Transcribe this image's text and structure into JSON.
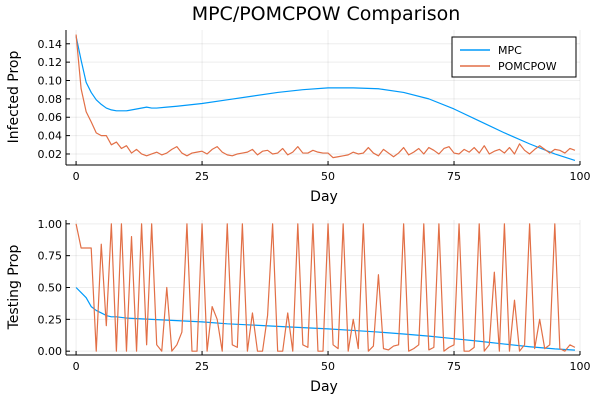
{
  "chart_data": [
    {
      "type": "line",
      "title": "MPC/POMCPOW Comparison",
      "xlabel": "Day",
      "ylabel": "Infected Prop",
      "xlim": [
        -2,
        100
      ],
      "ylim": [
        0.008,
        0.155
      ],
      "xticks": [
        0,
        25,
        50,
        75,
        100
      ],
      "xtick_labels": [
        "0",
        "25",
        "50",
        "75",
        "100"
      ],
      "yticks": [
        0.02,
        0.04,
        0.06,
        0.08,
        0.1,
        0.12,
        0.14
      ],
      "ytick_labels": [
        "0.02",
        "0.04",
        "0.06",
        "0.08",
        "0.10",
        "0.12",
        "0.14"
      ],
      "legend": "top-right",
      "series": [
        {
          "name": "MPC",
          "color": "#009AFA",
          "x": [
            0,
            1,
            2,
            3,
            4,
            5,
            6,
            7,
            8,
            10,
            12,
            14,
            15,
            16,
            18,
            20,
            25,
            30,
            35,
            40,
            45,
            50,
            55,
            60,
            65,
            70,
            75,
            80,
            85,
            90,
            95,
            99
          ],
          "y": [
            0.148,
            0.122,
            0.098,
            0.087,
            0.079,
            0.074,
            0.07,
            0.068,
            0.067,
            0.067,
            0.069,
            0.071,
            0.07,
            0.07,
            0.071,
            0.072,
            0.075,
            0.079,
            0.083,
            0.087,
            0.09,
            0.092,
            0.092,
            0.091,
            0.087,
            0.08,
            0.069,
            0.056,
            0.043,
            0.031,
            0.02,
            0.013
          ]
        },
        {
          "name": "POMCPOW",
          "color": "#E26F46",
          "x": [
            0,
            1,
            2,
            3,
            4,
            5,
            6,
            7,
            8,
            9,
            10,
            11,
            12,
            13,
            14,
            15,
            16,
            17,
            18,
            19,
            20,
            21,
            22,
            23,
            24,
            25,
            26,
            27,
            28,
            29,
            30,
            31,
            32,
            33,
            34,
            35,
            36,
            37,
            38,
            39,
            40,
            41,
            42,
            43,
            44,
            45,
            46,
            47,
            48,
            49,
            50,
            51,
            52,
            53,
            54,
            55,
            56,
            57,
            58,
            59,
            60,
            61,
            62,
            63,
            64,
            65,
            66,
            67,
            68,
            69,
            70,
            71,
            72,
            73,
            74,
            75,
            76,
            77,
            78,
            79,
            80,
            81,
            82,
            83,
            84,
            85,
            86,
            87,
            88,
            89,
            90,
            91,
            92,
            93,
            94,
            95,
            96,
            97,
            98,
            99
          ],
          "y": [
            0.15,
            0.091,
            0.066,
            0.055,
            0.043,
            0.04,
            0.04,
            0.03,
            0.033,
            0.026,
            0.029,
            0.021,
            0.025,
            0.02,
            0.018,
            0.02,
            0.022,
            0.019,
            0.021,
            0.025,
            0.028,
            0.021,
            0.018,
            0.021,
            0.022,
            0.023,
            0.02,
            0.025,
            0.028,
            0.022,
            0.019,
            0.018,
            0.02,
            0.021,
            0.022,
            0.025,
            0.019,
            0.023,
            0.024,
            0.02,
            0.021,
            0.026,
            0.019,
            0.022,
            0.028,
            0.021,
            0.021,
            0.024,
            0.022,
            0.021,
            0.021,
            0.016,
            0.017,
            0.018,
            0.019,
            0.022,
            0.02,
            0.021,
            0.027,
            0.021,
            0.018,
            0.025,
            0.021,
            0.017,
            0.021,
            0.027,
            0.019,
            0.022,
            0.026,
            0.02,
            0.027,
            0.024,
            0.02,
            0.026,
            0.028,
            0.021,
            0.02,
            0.025,
            0.022,
            0.027,
            0.021,
            0.029,
            0.02,
            0.023,
            0.025,
            0.021,
            0.027,
            0.02,
            0.031,
            0.024,
            0.02,
            0.025,
            0.029,
            0.025,
            0.021,
            0.025,
            0.024,
            0.021,
            0.026,
            0.024
          ]
        }
      ]
    },
    {
      "type": "line",
      "title": "",
      "xlabel": "Day",
      "ylabel": "Testing Prop",
      "xlim": [
        -2,
        100
      ],
      "ylim": [
        -0.03,
        1.03
      ],
      "xticks": [
        0,
        25,
        50,
        75,
        100
      ],
      "xtick_labels": [
        "0",
        "25",
        "50",
        "75",
        "100"
      ],
      "yticks": [
        0.0,
        0.25,
        0.5,
        0.75,
        1.0
      ],
      "ytick_labels": [
        "0.00",
        "0.25",
        "0.50",
        "0.75",
        "1.00"
      ],
      "series": [
        {
          "name": "MPC",
          "color": "#009AFA",
          "x": [
            0,
            1,
            2,
            3,
            4,
            5,
            6,
            7,
            8,
            10,
            15,
            20,
            25,
            30,
            35,
            40,
            45,
            50,
            55,
            60,
            65,
            70,
            75,
            80,
            85,
            90,
            95,
            99
          ],
          "y": [
            0.5,
            0.46,
            0.42,
            0.35,
            0.32,
            0.3,
            0.28,
            0.27,
            0.27,
            0.26,
            0.25,
            0.24,
            0.23,
            0.215,
            0.205,
            0.195,
            0.185,
            0.175,
            0.163,
            0.15,
            0.135,
            0.118,
            0.098,
            0.078,
            0.056,
            0.035,
            0.018,
            0.008
          ]
        },
        {
          "name": "POMCPOW",
          "color": "#E26F46",
          "x": [
            0,
            1,
            2,
            3,
            4,
            5,
            6,
            7,
            8,
            9,
            10,
            11,
            12,
            13,
            14,
            15,
            16,
            17,
            18,
            19,
            20,
            21,
            22,
            23,
            24,
            25,
            26,
            27,
            28,
            29,
            30,
            31,
            32,
            33,
            34,
            35,
            36,
            37,
            38,
            39,
            40,
            41,
            42,
            43,
            44,
            45,
            46,
            47,
            48,
            49,
            50,
            51,
            52,
            53,
            54,
            55,
            56,
            57,
            58,
            59,
            60,
            61,
            62,
            63,
            64,
            65,
            66,
            67,
            68,
            69,
            70,
            71,
            72,
            73,
            74,
            75,
            76,
            77,
            78,
            79,
            80,
            81,
            82,
            83,
            84,
            85,
            86,
            87,
            88,
            89,
            90,
            91,
            92,
            93,
            94,
            95,
            96,
            97,
            98,
            99
          ],
          "y": [
            1.0,
            0.81,
            0.81,
            0.81,
            0.0,
            0.84,
            0.2,
            1.0,
            0.0,
            1.0,
            0.0,
            0.9,
            0.0,
            1.0,
            0.05,
            1.0,
            0.05,
            0.0,
            0.5,
            0.0,
            0.05,
            0.15,
            1.0,
            0.0,
            0.0,
            1.0,
            0.0,
            0.35,
            0.25,
            0.0,
            1.0,
            0.05,
            0.03,
            1.0,
            0.0,
            0.3,
            0.0,
            0.0,
            0.28,
            1.0,
            0.0,
            0.0,
            0.3,
            0.0,
            1.0,
            0.05,
            0.03,
            1.0,
            0.0,
            0.0,
            1.0,
            0.05,
            0.02,
            1.0,
            0.0,
            0.25,
            0.02,
            1.0,
            0.0,
            0.04,
            0.6,
            0.02,
            0.01,
            0.04,
            0.05,
            1.0,
            0.0,
            0.02,
            0.05,
            1.0,
            0.01,
            0.03,
            1.0,
            0.0,
            0.03,
            0.05,
            1.0,
            0.0,
            0.0,
            0.03,
            1.0,
            0.0,
            0.05,
            0.62,
            0.0,
            1.0,
            0.0,
            0.4,
            0.0,
            0.05,
            1.0,
            0.02,
            0.25,
            0.02,
            0.05,
            1.0,
            0.02,
            0.0,
            0.05,
            0.03
          ]
        }
      ]
    }
  ]
}
